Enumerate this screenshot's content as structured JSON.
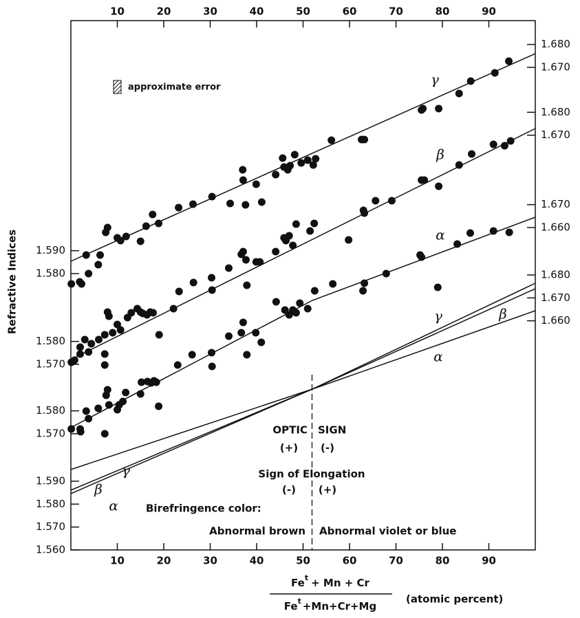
{
  "chart_data": {
    "type": "scatter",
    "ylabel": "Refractive Indices",
    "xlabel": {
      "numerator": [
        "Fe",
        "t",
        "+ Mn + Cr"
      ],
      "denominator": [
        "Fe",
        "t",
        "+Mn+Cr+Mg"
      ],
      "unit": "(atomic percent)"
    },
    "legend": "approximate error",
    "xlim": [
      0,
      100
    ],
    "xticks": [
      10,
      20,
      30,
      40,
      50,
      60,
      70,
      80,
      90
    ],
    "annotations": {
      "optic": "OPTIC",
      "sign": "SIGN",
      "optic_left": "(+)",
      "optic_right": "(-)",
      "elongation": "Sign of Elongation",
      "elong_left": "(-)",
      "elong_right": "(+)",
      "birefringence": "Birefringence color:",
      "color_left": "Abnormal brown",
      "color_right": "Abnormal violet or blue"
    },
    "panels": [
      {
        "type": "scatter",
        "label": "γ",
        "ylim": [
          1.58,
          1.68
        ],
        "yticks": [
          {
            "value": 1.58,
            "label": "1.580"
          },
          {
            "value": 1.59,
            "label": "1.590"
          }
        ],
        "y2ticks": [
          {
            "value": 1.67,
            "label": "1.670"
          },
          {
            "value": 1.68,
            "label": "1.680"
          }
        ],
        "x": [
          0.1,
          1.9,
          2.3,
          3.8,
          3.3,
          6.3,
          7.5,
          7.9,
          5.9,
          10.0,
          10.7,
          11.9,
          15.0,
          16.2,
          17.6,
          18.9,
          23.2,
          26.3,
          30.4,
          34.3,
          37.6,
          37.0,
          37.1,
          39.9,
          41.1,
          44.1,
          45.6,
          45.9,
          46.7,
          48.2,
          47.2,
          49.6,
          51.0,
          52.7,
          52.2,
          56.1,
          62.6,
          63.2,
          75.5,
          75.8,
          79.2,
          83.6,
          86.1,
          91.3,
          94.3
        ],
        "values": [
          1.5755,
          1.5764,
          1.5755,
          1.58,
          1.5881,
          1.5881,
          1.598,
          1.6001,
          1.5839,
          1.5956,
          1.5944,
          1.5962,
          1.5941,
          1.6007,
          1.6058,
          1.6019,
          1.6088,
          1.6103,
          1.6136,
          1.6106,
          1.61,
          1.6253,
          1.6208,
          1.619,
          1.6112,
          1.6232,
          1.6304,
          1.6265,
          1.6253,
          1.6319,
          1.6271,
          1.6283,
          1.6295,
          1.6301,
          1.6274,
          1.6382,
          1.6385,
          1.6385,
          1.6514,
          1.652,
          1.652,
          1.6586,
          1.664,
          1.6676,
          1.6727
        ],
        "fit": {
          "x": [
            0,
            100
          ],
          "values": [
            1.5854,
            1.676
          ]
        }
      },
      {
        "type": "scatter",
        "label": "β",
        "ylim": [
          1.57,
          1.68
        ],
        "yticks": [
          {
            "value": 1.57,
            "label": "1.570"
          },
          {
            "value": 1.58,
            "label": "1.580"
          }
        ],
        "y2ticks": [
          {
            "value": 1.67,
            "label": "1.670"
          },
          {
            "value": 1.68,
            "label": "1.680"
          }
        ],
        "x": [
          0.1,
          0.8,
          2.0,
          2.0,
          3.0,
          3.8,
          4.4,
          6.0,
          7.3,
          7.3,
          7.9,
          8.2,
          7.3,
          9.0,
          10.0,
          10.7,
          12.2,
          13.0,
          14.3,
          15.0,
          15.5,
          16.4,
          17.1,
          17.7,
          19.0,
          22.1,
          23.3,
          26.4,
          30.3,
          30.4,
          34.0,
          36.7,
          37.1,
          37.7,
          37.9,
          39.9,
          40.7,
          44.1,
          45.9,
          46.3,
          47.0,
          47.8,
          48.5,
          52.4,
          51.5,
          59.8,
          63.0,
          63.2,
          65.6,
          69.1,
          75.5,
          76.1,
          79.2,
          83.6,
          86.3,
          91.0,
          93.4,
          94.7
        ],
        "values": [
          1.5709,
          1.5718,
          1.5775,
          1.5745,
          1.5808,
          1.5754,
          1.579,
          1.5808,
          1.5745,
          1.5697,
          1.5928,
          1.591,
          1.5829,
          1.5838,
          1.5874,
          1.585,
          1.5904,
          1.5925,
          1.5943,
          1.5928,
          1.5922,
          1.5916,
          1.5928,
          1.5925,
          1.5829,
          1.5943,
          1.6018,
          1.6057,
          1.6078,
          1.6024,
          1.612,
          1.618,
          1.6192,
          1.6156,
          1.6045,
          1.6147,
          1.6147,
          1.6192,
          1.6252,
          1.624,
          1.6261,
          1.6219,
          1.6312,
          1.6315,
          1.6282,
          1.6243,
          1.6372,
          1.636,
          1.6414,
          1.6414,
          1.6504,
          1.6504,
          1.6477,
          1.657,
          1.6618,
          1.666,
          1.6654,
          1.6675
        ],
        "fit": {
          "x": [
            0,
            100
          ],
          "values": [
            1.5721,
            1.6729
          ]
        }
      },
      {
        "type": "scatter",
        "label": "α",
        "ylim": [
          1.57,
          1.67
        ],
        "yticks": [
          {
            "value": 1.57,
            "label": "1.570"
          },
          {
            "value": 1.58,
            "label": "1.580"
          }
        ],
        "y2ticks": [
          {
            "value": 1.66,
            "label": "1.660"
          },
          {
            "value": 1.67,
            "label": "1.670"
          }
        ],
        "x": [
          0.1,
          2.0,
          2.1,
          3.3,
          3.8,
          5.9,
          7.3,
          7.6,
          7.9,
          8.2,
          10.0,
          10.4,
          11.2,
          11.8,
          15.0,
          15.2,
          16.5,
          17.3,
          17.9,
          18.4,
          18.9,
          23.0,
          26.1,
          30.3,
          30.4,
          34.0,
          36.7,
          37.1,
          37.9,
          39.8,
          41.0,
          44.2,
          46.1,
          47.0,
          47.8,
          48.5,
          49.3,
          51.0,
          52.5,
          56.4,
          62.9,
          63.2,
          67.9,
          75.2,
          75.5,
          79.0,
          83.2,
          86.0,
          91.0,
          94.4
        ],
        "values": [
          1.5721,
          1.5721,
          1.5709,
          1.5799,
          1.5766,
          1.5811,
          1.57,
          1.5868,
          1.5892,
          1.5826,
          1.5805,
          1.5826,
          1.5841,
          1.588,
          1.5874,
          1.5925,
          1.5928,
          1.5922,
          1.5931,
          1.5925,
          1.582,
          1.6,
          1.6045,
          1.6054,
          1.5994,
          1.6126,
          1.6141,
          1.6186,
          1.6045,
          1.6141,
          1.6099,
          1.6276,
          1.624,
          1.6219,
          1.624,
          1.6228,
          1.627,
          1.6246,
          1.6324,
          1.6354,
          1.6324,
          1.6357,
          1.6399,
          1.648,
          1.6471,
          1.6339,
          1.6528,
          1.6576,
          1.6585,
          1.6579
        ],
        "fit": {
          "x": [
            0,
            52,
            100
          ],
          "values": [
            1.5727,
            1.6282,
            1.6645
          ]
        }
      },
      {
        "type": "line",
        "ylim": [
          1.56,
          1.68
        ],
        "yticks": [
          {
            "value": 1.56,
            "label": "1.560"
          },
          {
            "value": 1.57,
            "label": "1.570"
          },
          {
            "value": 1.58,
            "label": "1.580"
          },
          {
            "value": 1.59,
            "label": "1.590"
          }
        ],
        "y2ticks": [
          {
            "value": 1.66,
            "label": "1.660"
          },
          {
            "value": 1.67,
            "label": "1.670"
          },
          {
            "value": 1.68,
            "label": "1.680"
          }
        ],
        "series": [
          {
            "name": "γ",
            "x": [
              0,
              52,
              100
            ],
            "values": [
              1.5951,
              1.6302,
              1.6764
            ]
          },
          {
            "name": "β",
            "x": [
              0,
              52,
              100
            ],
            "values": [
              1.5861,
              1.6302,
              1.674
            ]
          },
          {
            "name": "α",
            "x": [
              0,
              52,
              100
            ],
            "values": [
              1.5846,
              1.6302,
              1.6644
            ]
          }
        ]
      }
    ]
  }
}
